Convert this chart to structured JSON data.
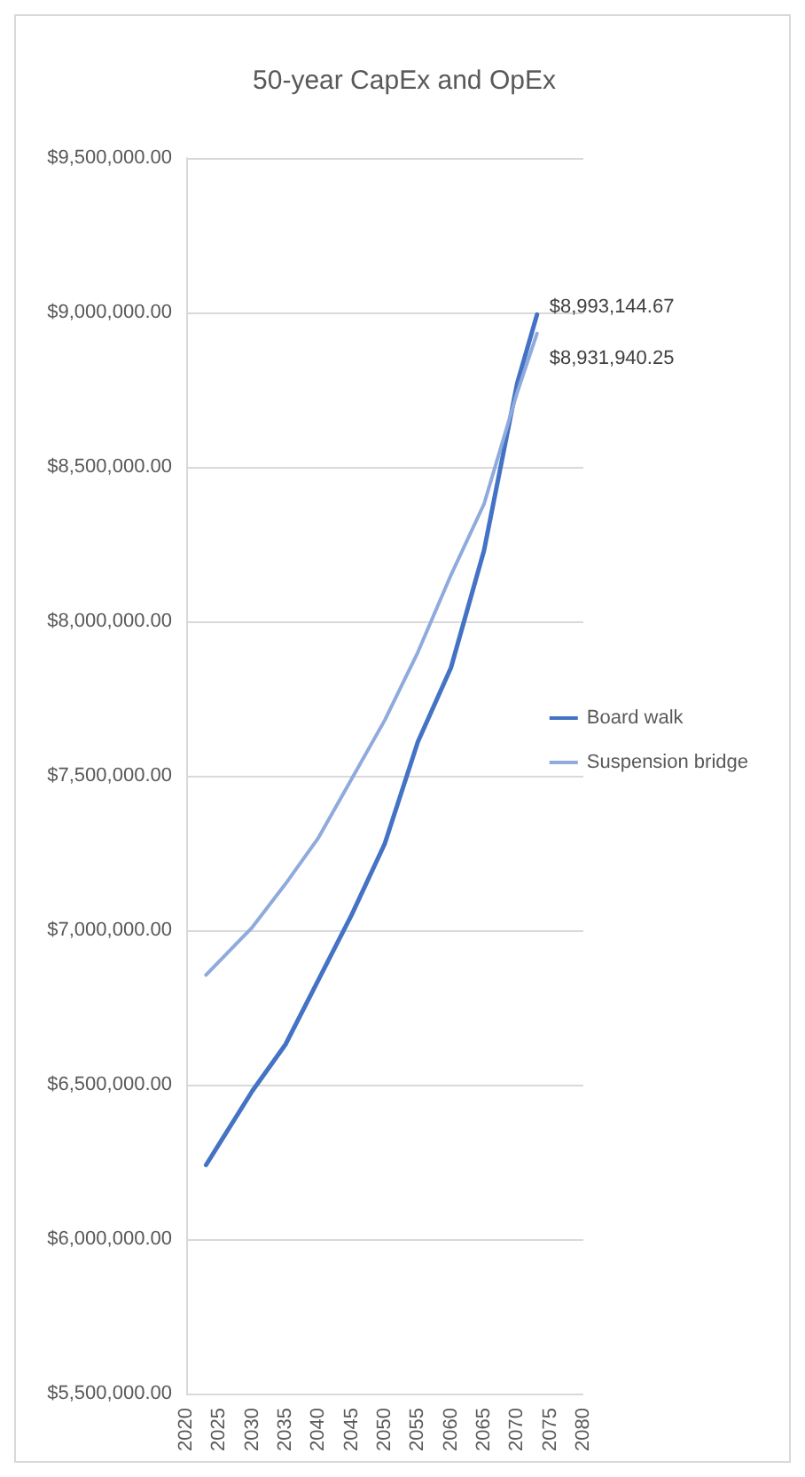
{
  "chart_data": {
    "type": "line",
    "title": "50-year CapEx and OpEx",
    "x": [
      2023,
      2030,
      2035,
      2040,
      2045,
      2050,
      2055,
      2060,
      2065,
      2070,
      2073
    ],
    "series": [
      {
        "name": "Board walk",
        "color": "#4472c4",
        "values": [
          6240000,
          6480000,
          6630000,
          6840000,
          7050000,
          7280000,
          7610000,
          7850000,
          8230000,
          8770000,
          8993144.67
        ],
        "value_labels": [
          null,
          null,
          null,
          null,
          null,
          null,
          null,
          null,
          null,
          null,
          "$8,993,144.67"
        ]
      },
      {
        "name": "Suspension bridge",
        "color": "#8faadc",
        "values": [
          6855000,
          7010000,
          7150000,
          7300000,
          7490000,
          7680000,
          7900000,
          8150000,
          8380000,
          8740000,
          8931940.25
        ],
        "value_labels": [
          null,
          null,
          null,
          null,
          null,
          null,
          null,
          null,
          null,
          null,
          "$8,931,940.25"
        ]
      }
    ],
    "xlim": [
      2020,
      2080
    ],
    "xticks": [
      2020,
      2025,
      2030,
      2035,
      2040,
      2045,
      2050,
      2055,
      2060,
      2065,
      2070,
      2075,
      2080
    ],
    "ylim": [
      5500000,
      9500000
    ],
    "yticks": [
      {
        "value": 5500000,
        "label": "$5,500,000.00"
      },
      {
        "value": 6000000,
        "label": "$6,000,000.00"
      },
      {
        "value": 6500000,
        "label": "$6,500,000.00"
      },
      {
        "value": 7000000,
        "label": "$7,000,000.00"
      },
      {
        "value": 7500000,
        "label": "$7,500,000.00"
      },
      {
        "value": 8000000,
        "label": "$8,000,000.00"
      },
      {
        "value": 8500000,
        "label": "$8,500,000.00"
      },
      {
        "value": 9000000,
        "label": "$9,000,000.00"
      },
      {
        "value": 9500000,
        "label": "$9,500,000.00"
      }
    ],
    "grid": "y",
    "legend": "right",
    "marker": "none",
    "line_style": "solid"
  }
}
